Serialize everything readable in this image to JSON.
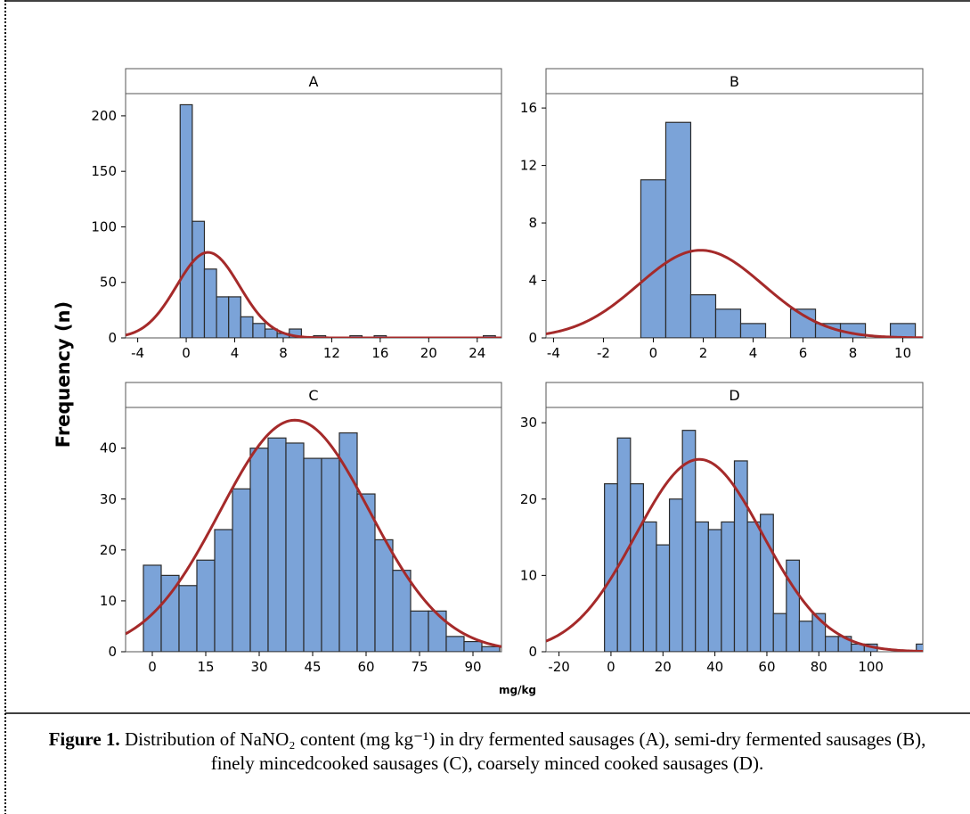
{
  "figure": {
    "ylabel": "Frequency (n)",
    "xlabel": "mg/kg",
    "caption_label": "Figure 1.",
    "caption_text": "Distribution of NaNO₂ content (mg kg⁻¹) in dry fermented sausages (A), semi-dry fermented sausages (B), finely mincedcooked sausages (C), coarsely minced cooked sausages (D)."
  },
  "colors": {
    "bar_fill": "#7ba3d8",
    "bar_stroke": "#2b2b2b",
    "curve": "#a52a2a",
    "frame": "#555555",
    "panel_header": "#ffffff"
  },
  "chart_data": [
    {
      "type": "bar",
      "panel": "A",
      "title": "A",
      "xlim": [
        -5,
        26
      ],
      "ylim": [
        0,
        220
      ],
      "xticks": [
        -4,
        0,
        4,
        8,
        12,
        16,
        20,
        24
      ],
      "yticks": [
        0,
        50,
        100,
        150,
        200
      ],
      "bin_width": 1,
      "bin_start": -0.5,
      "values": [
        210,
        105,
        62,
        37,
        37,
        19,
        13,
        8,
        4,
        8,
        1,
        2,
        0,
        0,
        2,
        0,
        2,
        0,
        0,
        0,
        0,
        0,
        0,
        0,
        0,
        2
      ],
      "normal_fit": {
        "mean": 1.8,
        "sd": 2.6,
        "peak": 77
      }
    },
    {
      "type": "bar",
      "panel": "B",
      "title": "B",
      "xlim": [
        -4.3,
        10.8
      ],
      "ylim": [
        0,
        17
      ],
      "xticks": [
        -4,
        -2,
        0,
        2,
        4,
        6,
        8,
        10
      ],
      "yticks": [
        0,
        4,
        8,
        12,
        16
      ],
      "bin_width": 1,
      "bin_start": -0.5,
      "values": [
        11,
        15,
        3,
        2,
        1,
        0,
        2,
        1,
        1,
        0,
        1
      ],
      "normal_fit": {
        "mean": 1.9,
        "sd": 2.5,
        "peak": 6.1
      }
    },
    {
      "type": "bar",
      "panel": "C",
      "title": "C",
      "xlim": [
        -7.5,
        98
      ],
      "ylim": [
        0,
        48
      ],
      "xticks": [
        0,
        15,
        30,
        45,
        60,
        75,
        90
      ],
      "yticks": [
        0,
        10,
        20,
        30,
        40
      ],
      "bin_width": 5,
      "bin_start": -2.5,
      "values": [
        17,
        15,
        13,
        18,
        24,
        32,
        40,
        42,
        41,
        38,
        38,
        43,
        31,
        22,
        16,
        8,
        8,
        3,
        2,
        1
      ],
      "normal_fit": {
        "mean": 40,
        "sd": 21,
        "peak": 45.5
      }
    },
    {
      "type": "bar",
      "panel": "D",
      "title": "D",
      "xlim": [
        -25,
        120
      ],
      "ylim": [
        0,
        32
      ],
      "xticks": [
        -20,
        0,
        20,
        40,
        60,
        80,
        100
      ],
      "yticks": [
        0,
        10,
        20,
        30
      ],
      "bin_width": 5,
      "bin_start": -2.5,
      "values": [
        22,
        28,
        22,
        17,
        14,
        20,
        29,
        17,
        16,
        17,
        25,
        17,
        18,
        5,
        12,
        4,
        5,
        2,
        2,
        1,
        1,
        0,
        0,
        0,
        1
      ],
      "normal_fit": {
        "mean": 34,
        "sd": 24.5,
        "peak": 25.2
      }
    }
  ]
}
